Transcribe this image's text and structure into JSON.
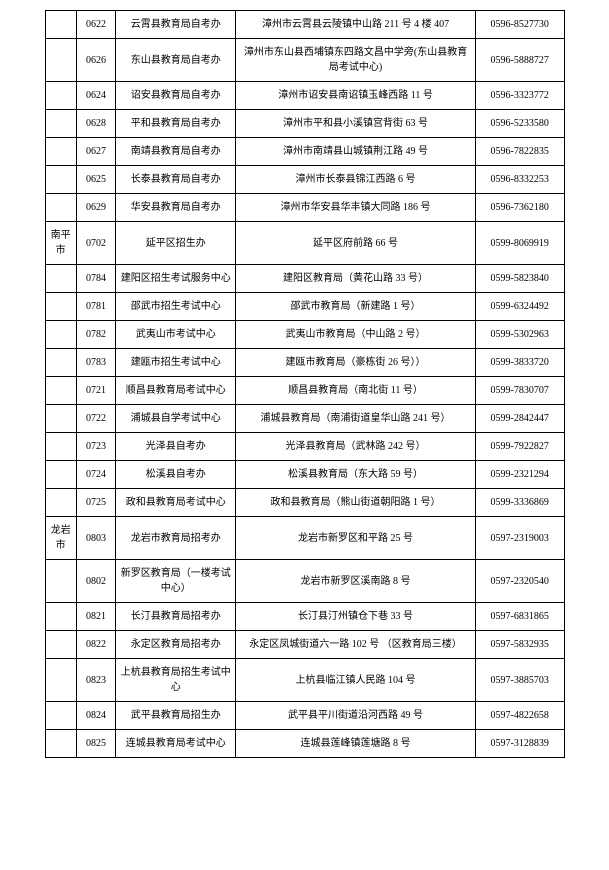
{
  "rows": [
    {
      "city": "",
      "code": "0622",
      "office": "云霄县教育局自考办",
      "address": "漳州市云霄县云陵镇中山路 211 号 4 楼 407",
      "phone": "0596-8527730"
    },
    {
      "city": "",
      "code": "0626",
      "office": "东山县教育局自考办",
      "address": "漳州市东山县西埔镇东四路文昌中学旁(东山县教育局考试中心)",
      "phone": "0596-5888727"
    },
    {
      "city": "",
      "code": "0624",
      "office": "诏安县教育局自考办",
      "address": "漳州市诏安县南诏镇玉峰西路 11 号",
      "phone": "0596-3323772"
    },
    {
      "city": "",
      "code": "0628",
      "office": "平和县教育局自考办",
      "address": "漳州市平和县小溪镇宫背街 63 号",
      "phone": "0596-5233580"
    },
    {
      "city": "",
      "code": "0627",
      "office": "南靖县教育局自考办",
      "address": "漳州市南靖县山城镇荆江路 49 号",
      "phone": "0596-7822835"
    },
    {
      "city": "",
      "code": "0625",
      "office": "长泰县教育局自考办",
      "address": "漳州市长泰县锦江西路 6 号",
      "phone": "0596-8332253"
    },
    {
      "city": "",
      "code": "0629",
      "office": "华安县教育局自考办",
      "address": "漳州市华安县华丰镇大同路 186 号",
      "phone": "0596-7362180"
    },
    {
      "city": "南平市",
      "code": "0702",
      "office": "延平区招生办",
      "address": "延平区府前路 66 号",
      "phone": "0599-8069919"
    },
    {
      "city": "",
      "code": "0784",
      "office": "建阳区招生考试服务中心",
      "address": "建阳区教育局（黄花山路 33 号）",
      "phone": "0599-5823840"
    },
    {
      "city": "",
      "code": "0781",
      "office": "邵武市招生考试中心",
      "address": "邵武市教育局（新建路 1 号）",
      "phone": "0599-6324492"
    },
    {
      "city": "",
      "code": "0782",
      "office": "武夷山市考试中心",
      "address": "武夷山市教育局（中山路 2 号）",
      "phone": "0599-5302963"
    },
    {
      "city": "",
      "code": "0783",
      "office": "建瓯市招生考试中心",
      "address": "建瓯市教育局（豪栋街 26 号））",
      "phone": "0599-3833720"
    },
    {
      "city": "",
      "code": "0721",
      "office": "顺昌县教育局考试中心",
      "address": "顺昌县教育局（南北街 11 号）",
      "phone": "0599-7830707"
    },
    {
      "city": "",
      "code": "0722",
      "office": "浦城县自学考试中心",
      "address": "浦城县教育局（南浦街道皇华山路 241 号）",
      "phone": "0599-2842447"
    },
    {
      "city": "",
      "code": "0723",
      "office": "光泽县自考办",
      "address": "光泽县教育局（武林路 242 号）",
      "phone": "0599-7922827"
    },
    {
      "city": "",
      "code": "0724",
      "office": "松溪县自考办",
      "address": "松溪县教育局（东大路 59 号）",
      "phone": "0599-2321294"
    },
    {
      "city": "",
      "code": "0725",
      "office": "政和县教育局考试中心",
      "address": "政和县教育局（熊山街道朝阳路 1 号）",
      "phone": "0599-3336869"
    },
    {
      "city": "龙岩市",
      "code": "0803",
      "office": "龙岩市教育局招考办",
      "address": "龙岩市新罗区和平路 25 号",
      "phone": "0597-2319003"
    },
    {
      "city": "",
      "code": "0802",
      "office": "新罗区教育局（一楼考试中心）",
      "address": "龙岩市新罗区溪南路 8 号",
      "phone": "0597-2320540"
    },
    {
      "city": "",
      "code": "0821",
      "office": "长汀县教育局招考办",
      "address": "长汀县汀州镇仓下巷 33 号",
      "phone": "0597-6831865"
    },
    {
      "city": "",
      "code": "0822",
      "office": "永定区教育局招考办",
      "address": "永定区凤城街道六一路 102 号 （区教育局三楼）",
      "phone": "0597-5832935"
    },
    {
      "city": "",
      "code": "0823",
      "office": "上杭县教育局招生考试中心",
      "address": "上杭县临江镇人民路 104 号",
      "phone": "0597-3885703"
    },
    {
      "city": "",
      "code": "0824",
      "office": "武平县教育局招生办",
      "address": "武平县平川街道沿河西路 49 号",
      "phone": "0597-4822658"
    },
    {
      "city": "",
      "code": "0825",
      "office": "连城县教育局考试中心",
      "address": "连城县莲峰镇莲塘路 8 号",
      "phone": "0597-3128839"
    }
  ]
}
